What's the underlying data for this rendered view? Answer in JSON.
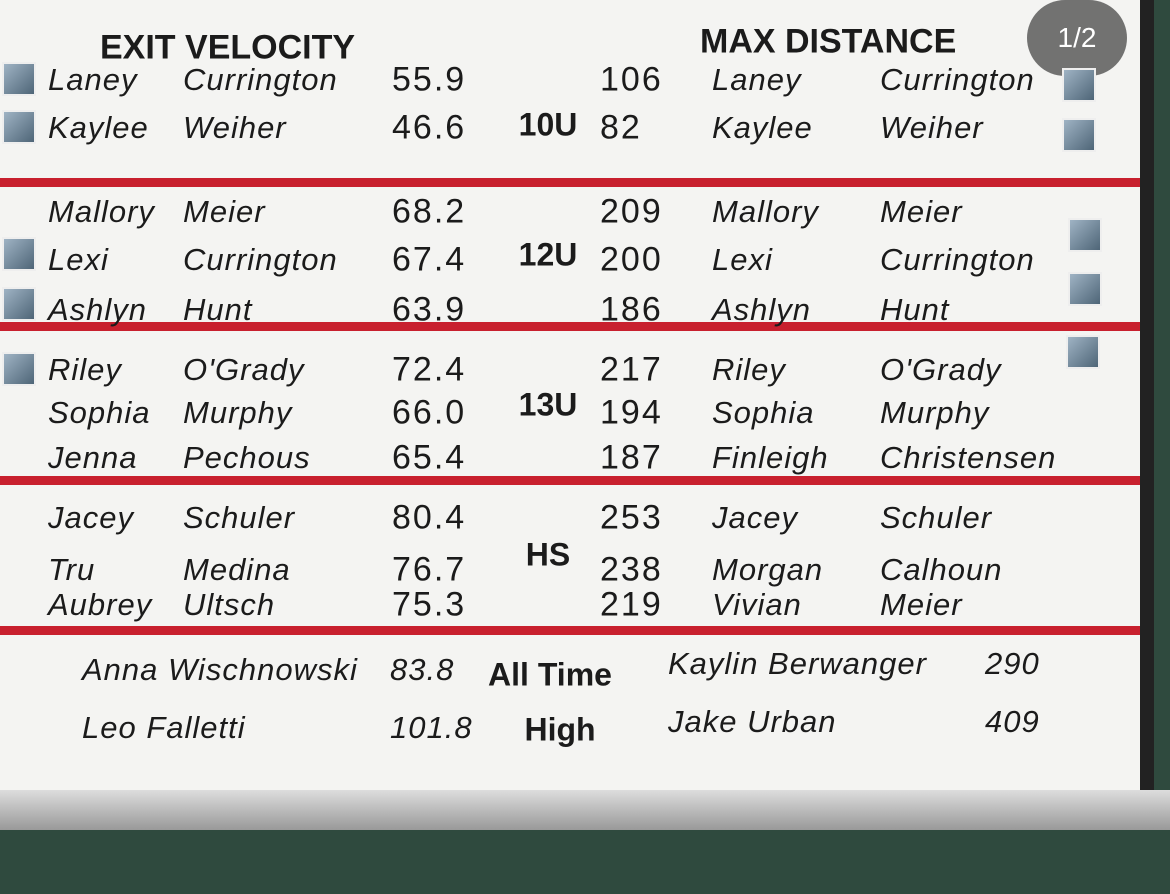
{
  "header": {
    "badge": "1/2"
  },
  "board": {
    "left_title": "EXIT VELOCITY",
    "right_title": "MAX DISTANCE",
    "divisions": [
      {
        "label": "10U",
        "exit_velocity": [
          {
            "first": "Laney",
            "last": "Currington",
            "value": "55.9"
          },
          {
            "first": "Kaylee",
            "last": "Weiher",
            "value": "46.6"
          }
        ],
        "max_distance": [
          {
            "value": "106",
            "first": "Laney",
            "last": "Currington"
          },
          {
            "value": "82",
            "first": "Kaylee",
            "last": "Weiher"
          }
        ]
      },
      {
        "label": "12U",
        "exit_velocity": [
          {
            "first": "Mallory",
            "last": "Meier",
            "value": "68.2"
          },
          {
            "first": "Lexi",
            "last": "Currington",
            "value": "67.4"
          },
          {
            "first": "Ashlyn",
            "last": "Hunt",
            "value": "63.9"
          }
        ],
        "max_distance": [
          {
            "value": "209",
            "first": "Mallory",
            "last": "Meier"
          },
          {
            "value": "200",
            "first": "Lexi",
            "last": "Currington"
          },
          {
            "value": "186",
            "first": "Ashlyn",
            "last": "Hunt"
          }
        ]
      },
      {
        "label": "13U",
        "exit_velocity": [
          {
            "first": "Riley",
            "last": "O'Grady",
            "value": "72.4"
          },
          {
            "first": "Sophia",
            "last": "Murphy",
            "value": "66.0"
          },
          {
            "first": "Jenna",
            "last": "Pechous",
            "value": "65.4"
          }
        ],
        "max_distance": [
          {
            "value": "217",
            "first": "Riley",
            "last": "O'Grady"
          },
          {
            "value": "194",
            "first": "Sophia",
            "last": "Murphy"
          },
          {
            "value": "187",
            "first": "Finleigh",
            "last": "Christensen"
          }
        ]
      },
      {
        "label": "HS",
        "exit_velocity": [
          {
            "first": "Jacey",
            "last": "Schuler",
            "value": "80.4"
          },
          {
            "first": "Tru",
            "last": "Medina",
            "value": "76.7"
          },
          {
            "first": "Aubrey",
            "last": "Ultsch",
            "value": "75.3"
          }
        ],
        "max_distance": [
          {
            "value": "253",
            "first": "Jacey",
            "last": "Schuler"
          },
          {
            "value": "238",
            "first": "Morgan",
            "last": "Calhoun"
          },
          {
            "value": "219",
            "first": "Vivian",
            "last": "Meier"
          }
        ]
      }
    ],
    "all_time": {
      "label_1": "All Time",
      "label_2": "High",
      "exit_velocity": [
        {
          "name": "Anna Wischnowski",
          "value": "83.8"
        },
        {
          "name": "Leo Falletti",
          "value": "101.8"
        }
      ],
      "max_distance": [
        {
          "name": "Kaylin Berwanger",
          "value": "290"
        },
        {
          "name": "Jake Urban",
          "value": "409"
        }
      ]
    }
  }
}
